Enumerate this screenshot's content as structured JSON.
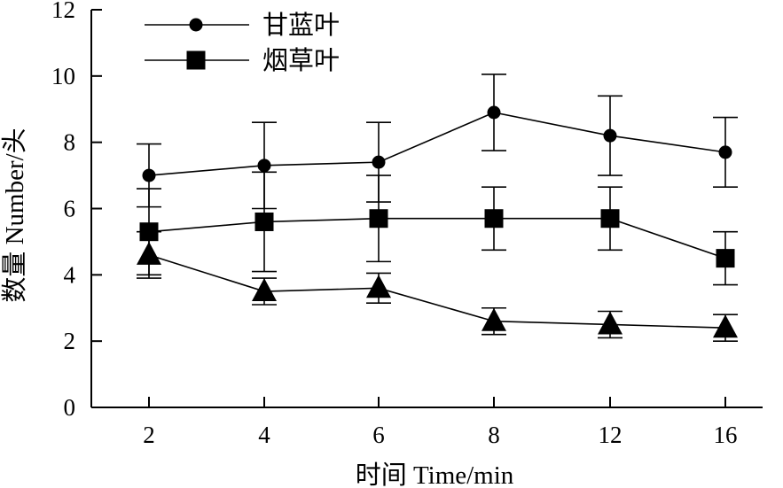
{
  "chart_data": {
    "type": "line",
    "title": "",
    "xlabel": "时间 Time/min",
    "ylabel": "数量 Number/头",
    "categories": [
      "2",
      "4",
      "6",
      "8",
      "12",
      "16"
    ],
    "ylim": [
      0,
      12
    ],
    "yticks": [
      0,
      2,
      4,
      6,
      8,
      10,
      12
    ],
    "grid": false,
    "legend_position": "top-left",
    "series": [
      {
        "name": "甘蓝叶",
        "marker": "circle",
        "values": [
          7.0,
          7.3,
          7.4,
          8.9,
          8.2,
          7.7
        ],
        "errors": [
          0.95,
          1.3,
          1.2,
          1.15,
          1.2,
          1.05
        ]
      },
      {
        "name": "烟草叶",
        "marker": "square",
        "values": [
          5.3,
          5.6,
          5.7,
          5.7,
          5.7,
          4.5
        ],
        "errors": [
          1.3,
          1.5,
          1.3,
          0.95,
          0.95,
          0.8
        ]
      },
      {
        "name": "",
        "marker": "triangle",
        "values": [
          4.6,
          3.5,
          3.6,
          2.6,
          2.5,
          2.4
        ],
        "errors": [
          0.7,
          0.4,
          0.45,
          0.4,
          0.4,
          0.4
        ]
      }
    ]
  }
}
